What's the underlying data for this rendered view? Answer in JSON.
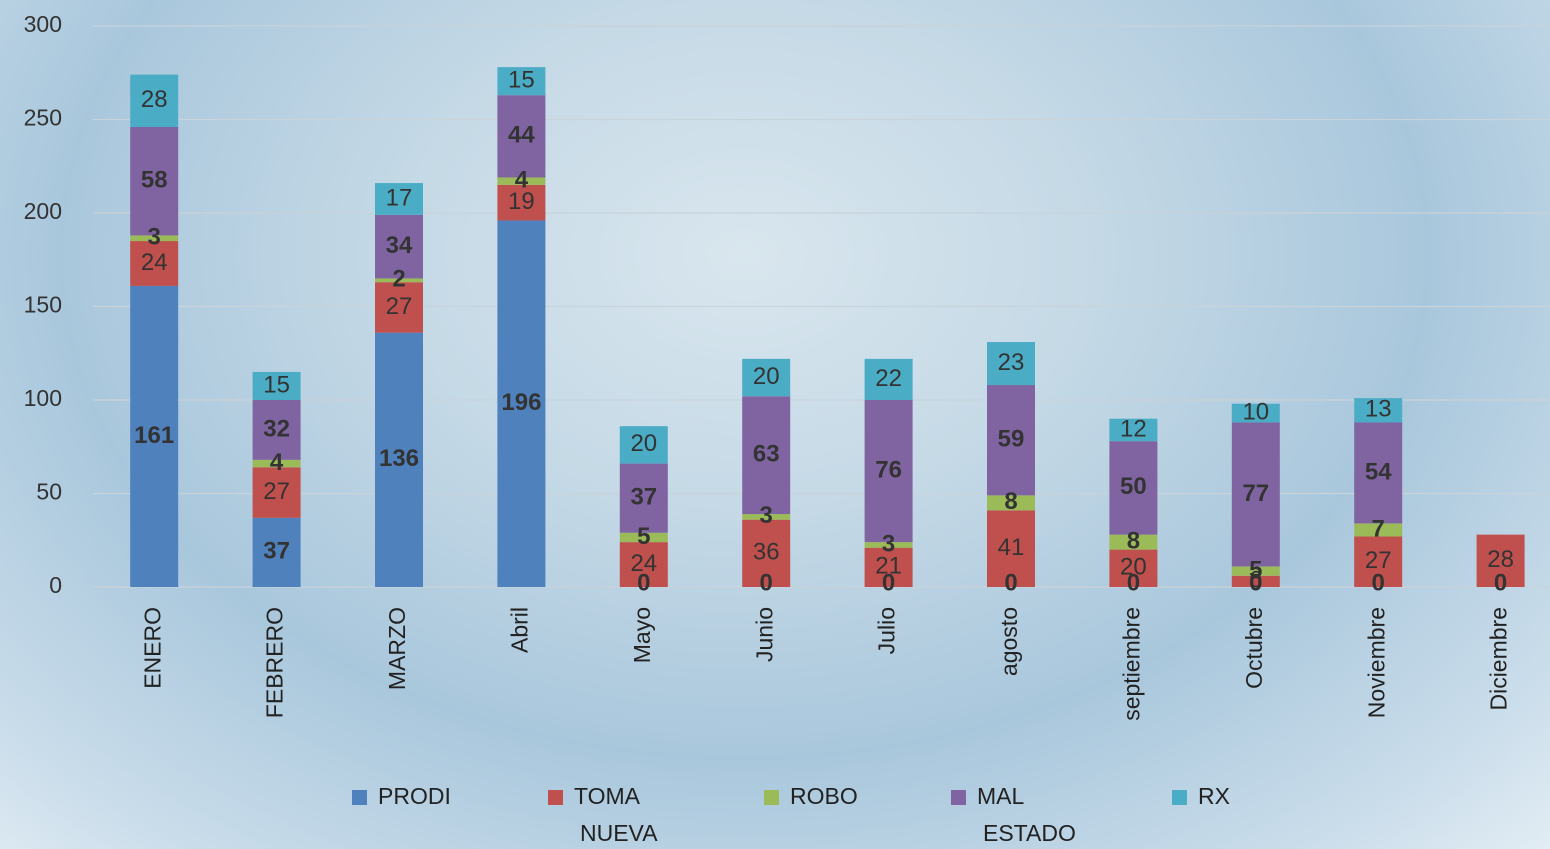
{
  "chart_data": {
    "type": "stacked-bar",
    "categories": [
      "ENERO",
      "FEBRERO",
      "MARZO",
      "Abril",
      "Mayo",
      "Junio",
      "Julio",
      "agosto",
      "septiembre",
      "Octubre",
      "Noviembre",
      "Diciembre"
    ],
    "series": [
      {
        "name": "PRODI",
        "color": "#4f81bd",
        "values": [
          161,
          37,
          136,
          196,
          0,
          0,
          0,
          0,
          0,
          0,
          0,
          0
        ]
      },
      {
        "name": "TOMA NUEVA",
        "color": "#c0504d",
        "values": [
          24,
          27,
          27,
          19,
          24,
          36,
          21,
          41,
          20,
          6,
          27,
          28
        ]
      },
      {
        "name": "ROBO",
        "color": "#9bbb59",
        "values": [
          3,
          4,
          2,
          4,
          5,
          3,
          3,
          8,
          8,
          5,
          7,
          null
        ]
      },
      {
        "name": "MAL ESTADO",
        "color": "#8064a2",
        "values": [
          58,
          32,
          34,
          44,
          37,
          63,
          76,
          59,
          50,
          77,
          54,
          null
        ]
      },
      {
        "name": "RX",
        "color": "#4bacc6",
        "values": [
          28,
          15,
          17,
          15,
          20,
          20,
          22,
          23,
          12,
          10,
          13,
          null
        ]
      }
    ],
    "ylim": [
      0,
      300
    ],
    "yticks": [
      0,
      50,
      100,
      150,
      200,
      250,
      300
    ],
    "grid": true
  }
}
